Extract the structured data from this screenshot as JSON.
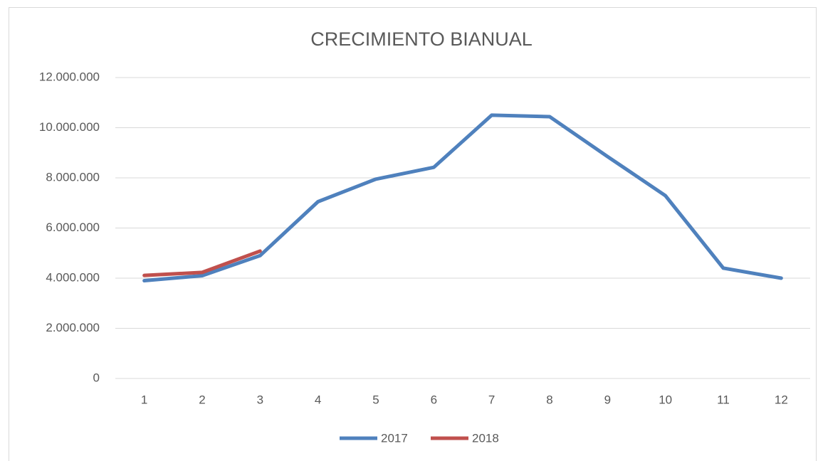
{
  "chart_data": {
    "type": "line",
    "title": "CRECIMIENTO BIANUAL",
    "categories": [
      "1",
      "2",
      "3",
      "4",
      "5",
      "6",
      "7",
      "8",
      "9",
      "10",
      "11",
      "12"
    ],
    "series": [
      {
        "name": "2017",
        "color": "#4f81bd",
        "values": [
          3900000,
          4100000,
          4900000,
          7050000,
          7950000,
          8420000,
          10500000,
          10440000,
          8850000,
          7290000,
          4400000,
          4000000
        ]
      },
      {
        "name": "2018",
        "color": "#c0504d",
        "values": [
          4110000,
          4230000,
          5080000,
          null,
          null,
          null,
          null,
          null,
          null,
          null,
          null,
          null
        ]
      }
    ],
    "ylim": [
      0,
      12000000
    ],
    "yticks": [
      0,
      {
        "value": 2000000,
        "label": "2.000.000"
      },
      {
        "value": 4000000,
        "label": "4.000.000"
      },
      {
        "value": 6000000,
        "label": "6.000.000"
      },
      {
        "value": 8000000,
        "label": "8.000.000"
      },
      {
        "value": 10000000,
        "label": "10.000.000"
      },
      {
        "value": 12000000,
        "label": "12.000.000"
      }
    ],
    "grid": true,
    "legend": "bottom"
  }
}
